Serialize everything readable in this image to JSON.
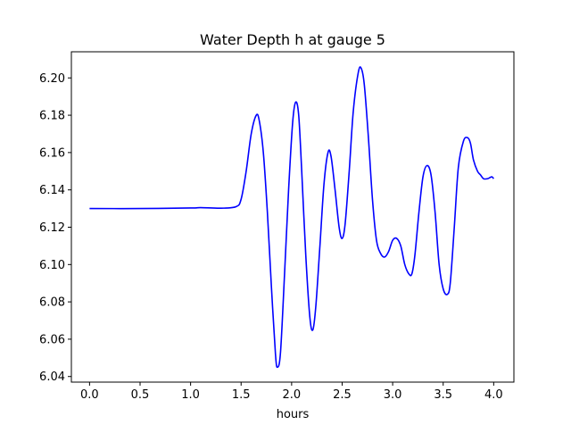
{
  "chart_data": {
    "type": "line",
    "title": "Water Depth h at gauge 5",
    "xlabel": "hours",
    "ylabel": "",
    "xlim": [
      -0.18,
      4.2
    ],
    "ylim": [
      6.037,
      6.214
    ],
    "xticks": [
      0.0,
      0.5,
      1.0,
      1.5,
      2.0,
      2.5,
      3.0,
      3.5,
      4.0
    ],
    "xtick_labels": [
      "0.0",
      "0.5",
      "1.0",
      "1.5",
      "2.0",
      "2.5",
      "3.0",
      "3.5",
      "4.0"
    ],
    "yticks": [
      6.04,
      6.06,
      6.08,
      6.1,
      6.12,
      6.14,
      6.16,
      6.18,
      6.2
    ],
    "ytick_labels": [
      "6.04",
      "6.06",
      "6.08",
      "6.10",
      "6.12",
      "6.14",
      "6.16",
      "6.18",
      "6.20"
    ],
    "grid": false,
    "series": [
      {
        "color": "#0000ff",
        "points": [
          [
            0.0,
            6.13
          ],
          [
            0.5,
            6.13
          ],
          [
            1.0,
            6.1303
          ],
          [
            1.1,
            6.1305
          ],
          [
            1.3,
            6.1302
          ],
          [
            1.45,
            6.131
          ],
          [
            1.5,
            6.135
          ],
          [
            1.55,
            6.15
          ],
          [
            1.6,
            6.17
          ],
          [
            1.65,
            6.18
          ],
          [
            1.68,
            6.177
          ],
          [
            1.72,
            6.16
          ],
          [
            1.76,
            6.128
          ],
          [
            1.8,
            6.088
          ],
          [
            1.84,
            6.052
          ],
          [
            1.86,
            6.045
          ],
          [
            1.89,
            6.053
          ],
          [
            1.93,
            6.095
          ],
          [
            1.97,
            6.14
          ],
          [
            2.01,
            6.176
          ],
          [
            2.04,
            6.187
          ],
          [
            2.07,
            6.18
          ],
          [
            2.1,
            6.15
          ],
          [
            2.14,
            6.105
          ],
          [
            2.18,
            6.072
          ],
          [
            2.21,
            6.065
          ],
          [
            2.24,
            6.078
          ],
          [
            2.28,
            6.11
          ],
          [
            2.32,
            6.143
          ],
          [
            2.36,
            6.16
          ],
          [
            2.39,
            6.158
          ],
          [
            2.43,
            6.14
          ],
          [
            2.47,
            6.12
          ],
          [
            2.5,
            6.114
          ],
          [
            2.53,
            6.122
          ],
          [
            2.57,
            6.15
          ],
          [
            2.61,
            6.182
          ],
          [
            2.66,
            6.203
          ],
          [
            2.69,
            6.205
          ],
          [
            2.72,
            6.196
          ],
          [
            2.76,
            6.168
          ],
          [
            2.8,
            6.135
          ],
          [
            2.84,
            6.113
          ],
          [
            2.88,
            6.106
          ],
          [
            2.92,
            6.104
          ],
          [
            2.96,
            6.107
          ],
          [
            3.0,
            6.113
          ],
          [
            3.04,
            6.114
          ],
          [
            3.08,
            6.11
          ],
          [
            3.12,
            6.1
          ],
          [
            3.16,
            6.095
          ],
          [
            3.19,
            6.095
          ],
          [
            3.22,
            6.105
          ],
          [
            3.26,
            6.128
          ],
          [
            3.3,
            6.147
          ],
          [
            3.34,
            6.153
          ],
          [
            3.38,
            6.148
          ],
          [
            3.42,
            6.128
          ],
          [
            3.46,
            6.1
          ],
          [
            3.5,
            6.087
          ],
          [
            3.54,
            6.084
          ],
          [
            3.57,
            6.09
          ],
          [
            3.61,
            6.12
          ],
          [
            3.65,
            6.152
          ],
          [
            3.7,
            6.166
          ],
          [
            3.74,
            6.168
          ],
          [
            3.77,
            6.165
          ],
          [
            3.8,
            6.156
          ],
          [
            3.84,
            6.15
          ],
          [
            3.87,
            6.148
          ],
          [
            3.9,
            6.146
          ],
          [
            3.94,
            6.146
          ],
          [
            3.98,
            6.147
          ],
          [
            4.0,
            6.146
          ]
        ]
      }
    ]
  }
}
